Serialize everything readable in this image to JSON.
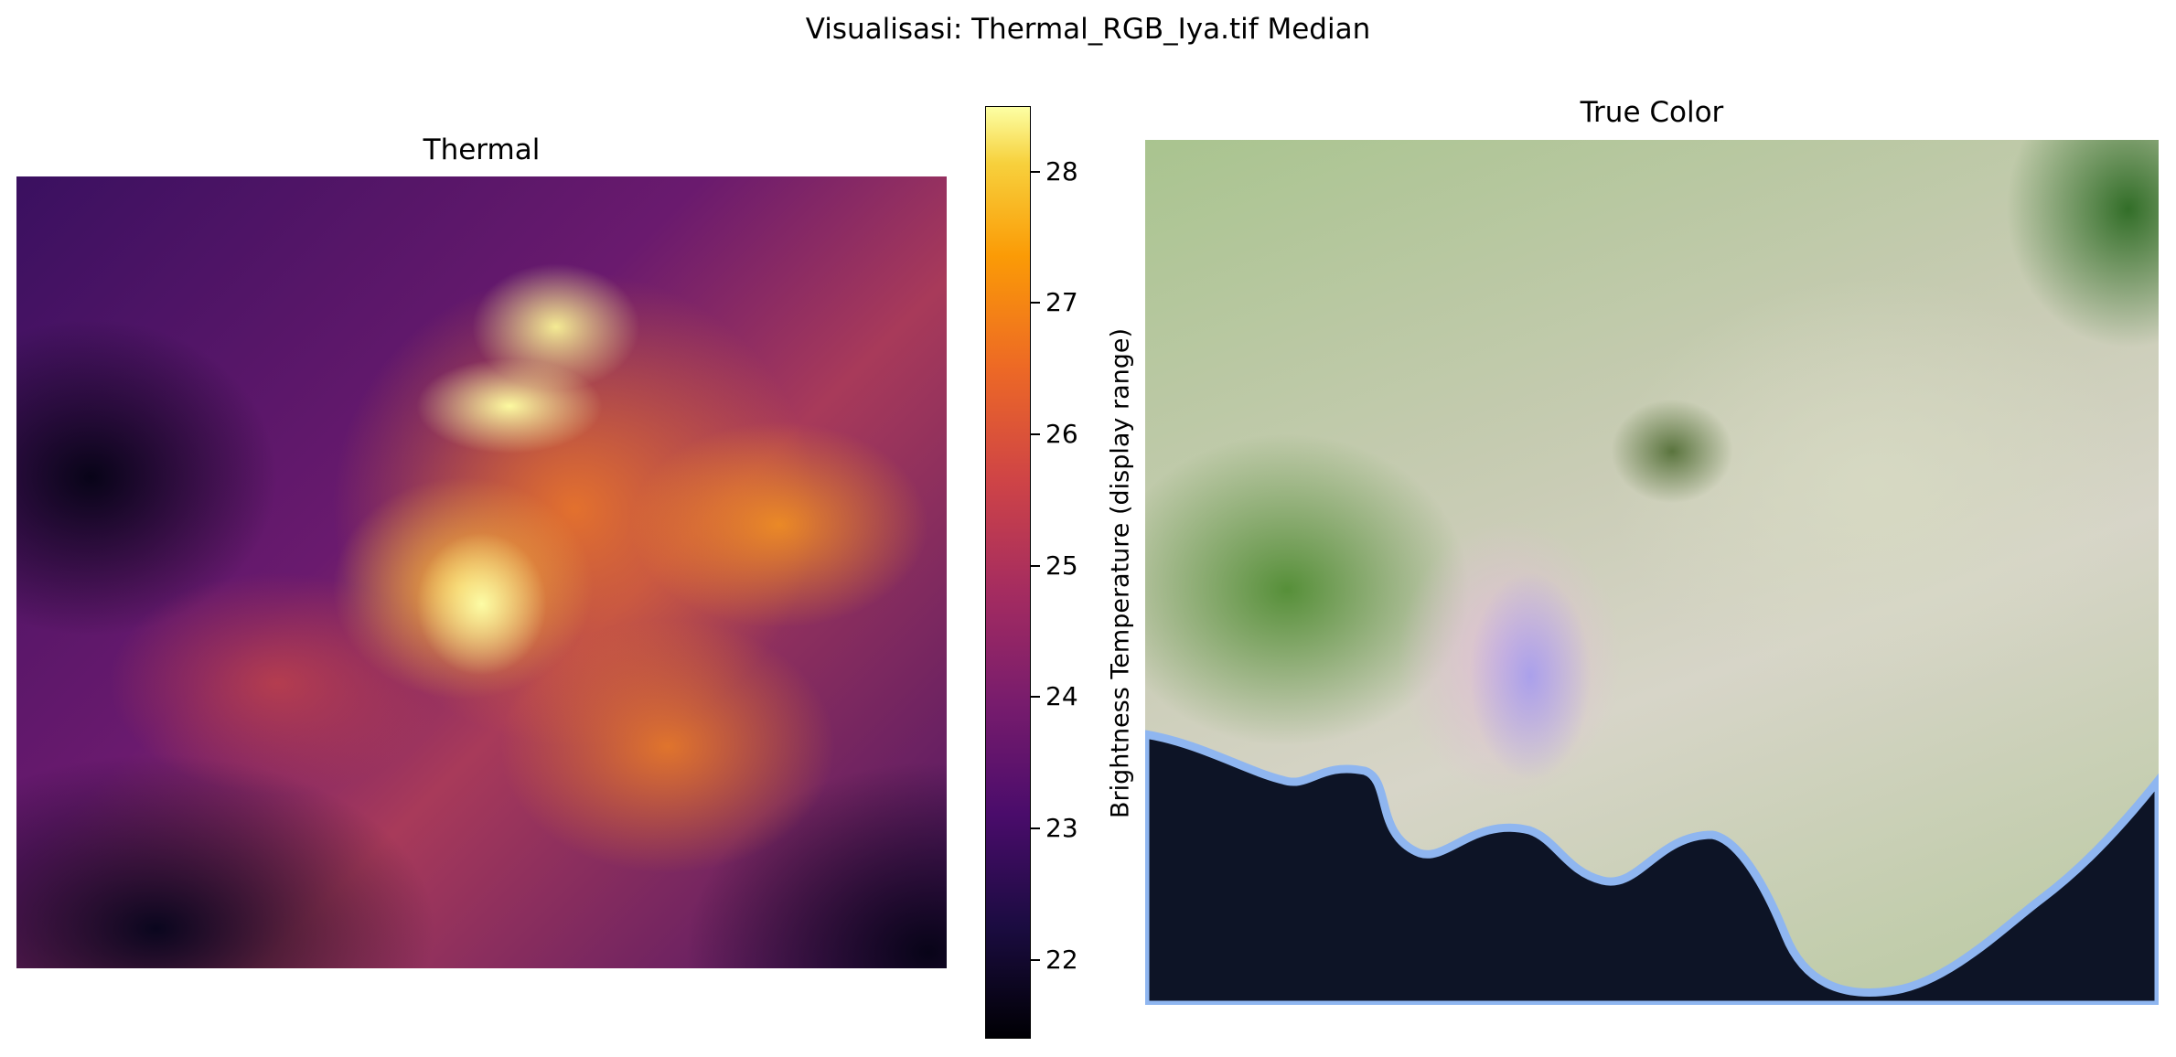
{
  "figure": {
    "suptitle": "Visualisasi: Thermal_RGB_Iya.tif Median"
  },
  "chart_data": [
    {
      "type": "heatmap",
      "title": "Thermal",
      "colormap": "inferno",
      "colorbar": {
        "label": "Brightness Temperature (display range)",
        "range": [
          21.4,
          28.5
        ],
        "ticks": [
          "22",
          "23",
          "24",
          "25",
          "26",
          "27",
          "28"
        ]
      },
      "axes_visible": false
    },
    {
      "type": "image",
      "title": "True Color",
      "axes_visible": false
    }
  ]
}
